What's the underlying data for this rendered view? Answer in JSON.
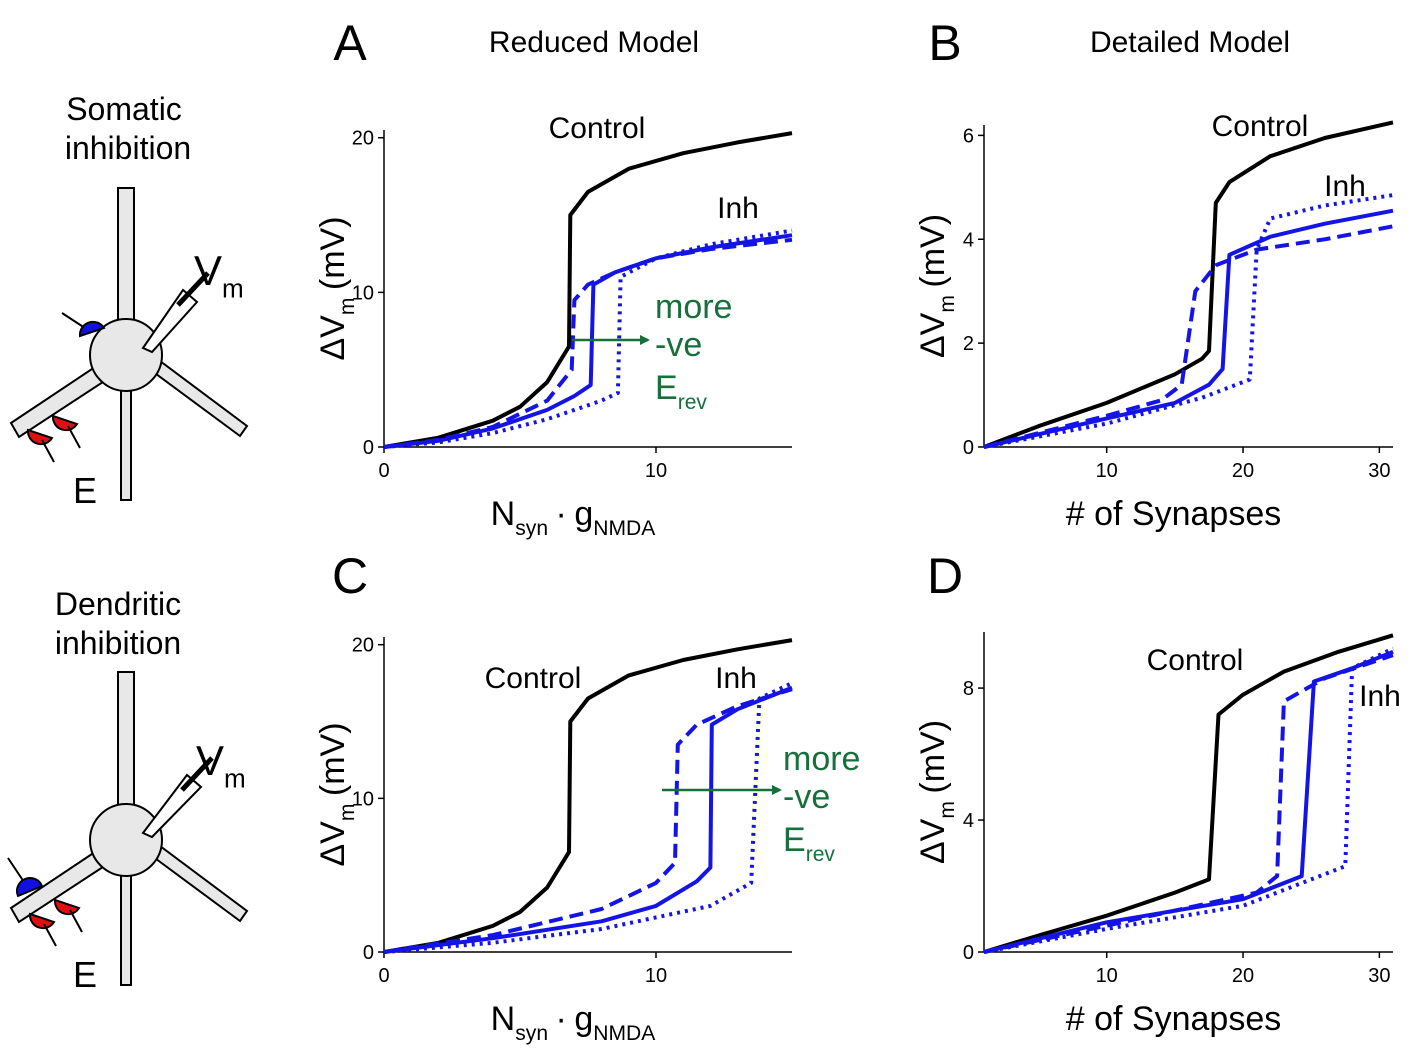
{
  "figure": {
    "panel_labels": [
      "A",
      "B",
      "C",
      "D"
    ],
    "column_titles": [
      "Reduced Model",
      "Detailed Model"
    ]
  },
  "diagrams": [
    {
      "title": [
        "Somatic",
        "inhibition"
      ],
      "probe": [
        {
          "text": "V"
        },
        {
          "text": "m",
          "sub": true
        }
      ],
      "synapse": "E"
    },
    {
      "title": [
        "Dendritic",
        "inhibition"
      ],
      "probe": [
        {
          "text": "V"
        },
        {
          "text": "m",
          "sub": true
        }
      ],
      "synapse": "E"
    }
  ],
  "chart_data": [
    {
      "type": "line",
      "xlim": [
        0,
        15
      ],
      "xticks": [
        0,
        10
      ],
      "ylim": [
        0,
        20.5
      ],
      "yticks": [
        0,
        10,
        20
      ],
      "xlabel": [
        {
          "text": "N"
        },
        {
          "text": "syn",
          "sub": true
        },
        {
          "text": "·"
        },
        {
          "text": "g"
        },
        {
          "text": "NMDA",
          "sub": true
        }
      ],
      "ylabel": [
        {
          "text": "ΔV"
        },
        {
          "text": "m",
          "sub": true
        },
        {
          "text": "(mV)"
        }
      ],
      "note": [
        [
          {
            "text": "more"
          }
        ],
        [
          {
            "text": "-ve"
          }
        ],
        [
          {
            "text": "E"
          },
          {
            "text": "rev",
            "sub": true
          }
        ]
      ],
      "note_color": "#17703c",
      "series": [
        {
          "name": "Control",
          "color": "#000000",
          "dash": "solid",
          "x": [
            0,
            2,
            4,
            5,
            6,
            6.8,
            6.85,
            7.5,
            9,
            11,
            13,
            15
          ],
          "values": [
            0,
            0.6,
            1.7,
            2.6,
            4.2,
            6.5,
            15,
            16.5,
            18,
            19,
            19.7,
            20.3
          ]
        },
        {
          "name": "Inh",
          "color": "#1414e6",
          "dash": "solid",
          "x": [
            0,
            2,
            4,
            6,
            7,
            7.6,
            7.7,
            8.5,
            10,
            12,
            15
          ],
          "values": [
            0,
            0.4,
            1.2,
            2.4,
            3.3,
            4,
            10.5,
            11.3,
            12.2,
            12.9,
            13.7
          ]
        },
        {
          "color": "#1414e6",
          "dash": "dashed",
          "x": [
            0,
            2,
            4,
            6,
            6.9,
            7.0,
            7.5,
            8.5,
            10,
            12,
            15
          ],
          "values": [
            0,
            0.45,
            1.3,
            3,
            5,
            9.5,
            10.5,
            11.3,
            12.2,
            12.8,
            13.4
          ]
        },
        {
          "color": "#1414e6",
          "dash": "dotted",
          "x": [
            0,
            2,
            4,
            6,
            8,
            8.6,
            8.7,
            10,
            12,
            15
          ],
          "values": [
            0,
            0.3,
            0.9,
            1.8,
            3,
            3.5,
            11,
            12.2,
            13.1,
            14
          ]
        }
      ]
    },
    {
      "type": "line",
      "xlim": [
        1,
        31
      ],
      "xticks": [
        10,
        20,
        30
      ],
      "ylim": [
        0,
        6.2
      ],
      "yticks": [
        0,
        2,
        4,
        6
      ],
      "xlabel": [
        {
          "text": "# of Synapses"
        }
      ],
      "ylabel": [
        {
          "text": "ΔV"
        },
        {
          "text": "m",
          "sub": true
        },
        {
          "text": "(mV)"
        }
      ],
      "series": [
        {
          "name": "Control",
          "color": "#000000",
          "dash": "solid",
          "x": [
            1,
            5,
            10,
            15,
            17,
            17.5,
            18,
            19,
            22,
            26,
            31
          ],
          "values": [
            0,
            0.4,
            0.85,
            1.4,
            1.7,
            1.85,
            4.7,
            5.1,
            5.6,
            5.95,
            6.25
          ]
        },
        {
          "name": "Inh",
          "color": "#1414e6",
          "dash": "solid",
          "x": [
            1,
            10,
            15,
            17.5,
            18.5,
            19,
            22,
            26,
            31
          ],
          "values": [
            0,
            0.55,
            0.85,
            1.2,
            1.5,
            3.7,
            4.05,
            4.3,
            4.55
          ]
        },
        {
          "color": "#1414e6",
          "dash": "dashed",
          "x": [
            1,
            10,
            14,
            15.5,
            16.5,
            18,
            21,
            26,
            31
          ],
          "values": [
            0,
            0.6,
            0.9,
            1.2,
            3,
            3.5,
            3.8,
            4.0,
            4.25
          ]
        },
        {
          "color": "#1414e6",
          "dash": "dotted",
          "x": [
            1,
            10,
            17,
            20.5,
            21,
            22,
            26,
            31
          ],
          "values": [
            0,
            0.45,
            0.95,
            1.3,
            3.8,
            4.4,
            4.65,
            4.85
          ]
        }
      ]
    },
    {
      "type": "line",
      "xlim": [
        0,
        15
      ],
      "xticks": [
        0,
        10
      ],
      "ylim": [
        0,
        20.5
      ],
      "yticks": [
        0,
        10,
        20
      ],
      "xlabel": [
        {
          "text": "N"
        },
        {
          "text": "syn",
          "sub": true
        },
        {
          "text": "·"
        },
        {
          "text": "g"
        },
        {
          "text": "NMDA",
          "sub": true
        }
      ],
      "ylabel": [
        {
          "text": "ΔV"
        },
        {
          "text": "m",
          "sub": true
        },
        {
          "text": "(mV)"
        }
      ],
      "note": [
        [
          {
            "text": "more"
          }
        ],
        [
          {
            "text": "-ve"
          }
        ],
        [
          {
            "text": "E"
          },
          {
            "text": "rev",
            "sub": true
          }
        ]
      ],
      "note_color": "#17703c",
      "series": [
        {
          "name": "Control",
          "color": "#000000",
          "dash": "solid",
          "x": [
            0,
            2,
            4,
            5,
            6,
            6.8,
            6.85,
            7.5,
            9,
            11,
            13,
            15
          ],
          "values": [
            0,
            0.6,
            1.7,
            2.6,
            4.2,
            6.5,
            15,
            16.5,
            18,
            19,
            19.7,
            20.3
          ]
        },
        {
          "name": "Inh",
          "color": "#1414e6",
          "dash": "solid",
          "x": [
            0,
            4,
            8,
            10,
            11.5,
            12,
            12.05,
            13,
            15
          ],
          "values": [
            0,
            0.9,
            2,
            3,
            4.6,
            5.5,
            14.8,
            15.8,
            17.2
          ]
        },
        {
          "color": "#1414e6",
          "dash": "dashed",
          "x": [
            0,
            4,
            8,
            10,
            10.7,
            10.8,
            11.5,
            13,
            15
          ],
          "values": [
            0,
            1.1,
            2.8,
            4.5,
            5.8,
            13.5,
            14.8,
            16,
            17.1
          ]
        },
        {
          "color": "#1414e6",
          "dash": "dotted",
          "x": [
            0,
            4,
            8,
            12,
            13.5,
            13.8,
            15
          ],
          "values": [
            0,
            0.6,
            1.5,
            3,
            4.5,
            16.5,
            17.5
          ]
        }
      ]
    },
    {
      "type": "line",
      "xlim": [
        1,
        31
      ],
      "xticks": [
        10,
        20,
        30
      ],
      "ylim": [
        0,
        9.7
      ],
      "yticks": [
        0,
        4,
        8
      ],
      "xlabel": [
        {
          "text": "# of Synapses"
        }
      ],
      "ylabel": [
        {
          "text": "ΔV"
        },
        {
          "text": "m",
          "sub": true
        },
        {
          "text": "(mV)"
        }
      ],
      "series": [
        {
          "name": "Control",
          "color": "#000000",
          "dash": "solid",
          "x": [
            1,
            5,
            10,
            15,
            17.5,
            18.2,
            20,
            23,
            27,
            31
          ],
          "values": [
            0,
            0.5,
            1.1,
            1.8,
            2.2,
            7.2,
            7.8,
            8.5,
            9.1,
            9.6
          ]
        },
        {
          "name": "Inh",
          "color": "#1414e6",
          "dash": "solid",
          "x": [
            1,
            10,
            20,
            24.3,
            25.2,
            28,
            31
          ],
          "values": [
            0,
            0.9,
            1.6,
            2.3,
            8.2,
            8.6,
            9.1
          ]
        },
        {
          "color": "#1414e6",
          "dash": "dashed",
          "x": [
            1,
            10,
            21,
            22.5,
            23,
            26,
            31
          ],
          "values": [
            0,
            0.8,
            1.8,
            2.3,
            7.6,
            8.3,
            9.0
          ]
        },
        {
          "color": "#1414e6",
          "dash": "dotted",
          "x": [
            1,
            10,
            20,
            27.5,
            28,
            31
          ],
          "values": [
            0,
            0.7,
            1.4,
            2.6,
            8.6,
            9.2
          ]
        }
      ]
    }
  ]
}
